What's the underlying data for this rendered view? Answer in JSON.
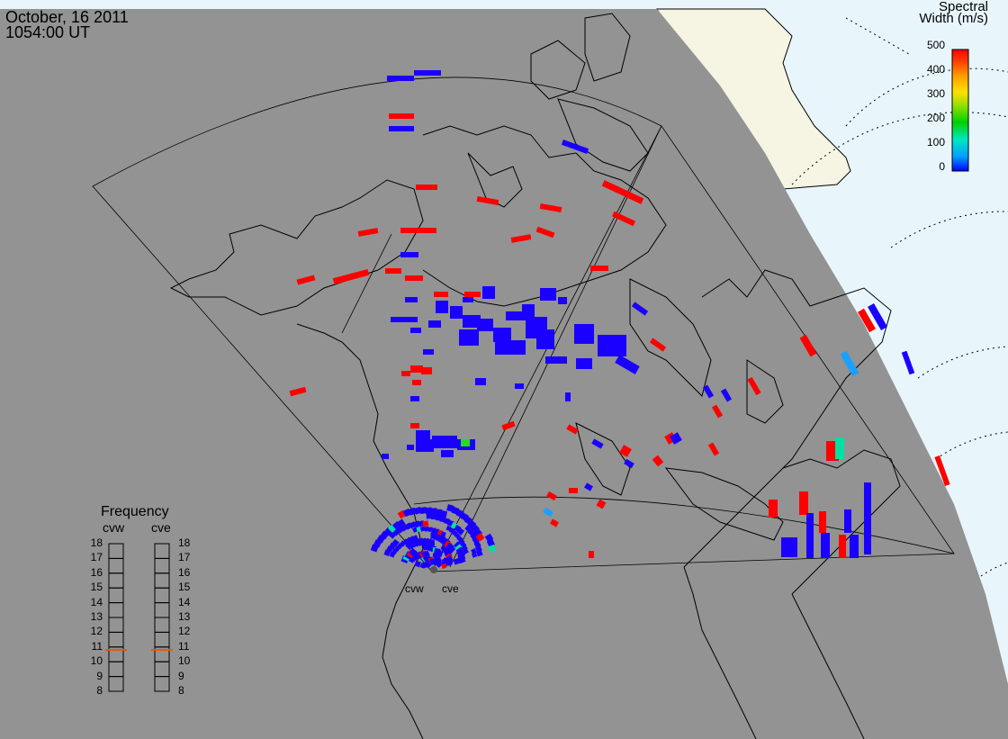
{
  "header": {
    "date": "October, 16 2011",
    "time": "1054:00 UT"
  },
  "colorbar": {
    "title_line1": "Spectral",
    "title_line2": "Width (m/s)",
    "ticks": [
      "500",
      "400",
      "300",
      "200",
      "100",
      "0"
    ],
    "colors": [
      "#0000ff",
      "#00a0ff",
      "#00e8c0",
      "#00d000",
      "#a0e000",
      "#ffe000",
      "#ffa000",
      "#ff4000",
      "#ff0000"
    ]
  },
  "frequency_panel": {
    "title": "Frequency",
    "radars": [
      "cvw",
      "cve"
    ],
    "ticks": [
      "18",
      "17",
      "16",
      "15",
      "14",
      "13",
      "12",
      "11",
      "10",
      "9",
      "8"
    ],
    "values_mhz": [
      10.8,
      10.8
    ],
    "marker_color": "#e85a00"
  },
  "radar_sites": [
    "cvw",
    "cve"
  ],
  "map": {
    "ocean_color": "#e8f6fc",
    "land_color": "#f6f4e2",
    "night_color": "#939393"
  },
  "scatter_colors": {
    "low": "#1a00ff",
    "high": "#ff0000",
    "mid": "#00e0a0",
    "cyan": "#1aa0ff",
    "green": "#22dd22"
  }
}
